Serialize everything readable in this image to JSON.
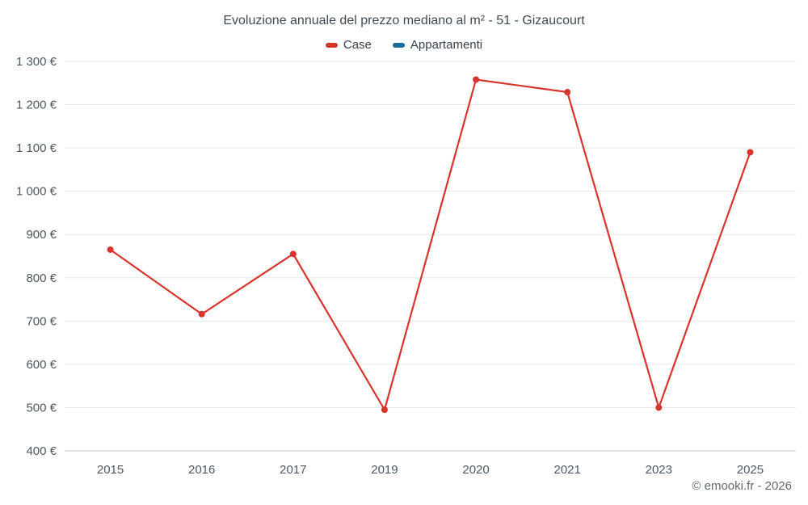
{
  "title": "Evoluzione annuale del prezzo mediano al m² - 51 - Gizaucourt",
  "footer": "© emooki.fr - 2026",
  "chart_data": {
    "type": "line",
    "title": "Evoluzione annuale del prezzo mediano al m² - 51 - Gizaucourt",
    "categories": [
      "2015",
      "2016",
      "2017",
      "2019",
      "2020",
      "2021",
      "2023",
      "2025"
    ],
    "series": [
      {
        "name": "Case",
        "color": "#d7342e",
        "values": [
          865,
          716,
          855,
          495,
          1258,
          1229,
          500,
          1090
        ]
      },
      {
        "name": "Appartamenti",
        "color": "#176e9e",
        "values": []
      }
    ],
    "xlabel": "",
    "ylabel": "",
    "ylim": [
      400,
      1300
    ],
    "ytick_step": 100,
    "ytick_suffix": "€",
    "grid": true,
    "legend_position": "top",
    "colors": {
      "gridline": "#e8e8e8",
      "axis_line": "#c6cbd0",
      "tick_label": "#4c5763"
    }
  }
}
